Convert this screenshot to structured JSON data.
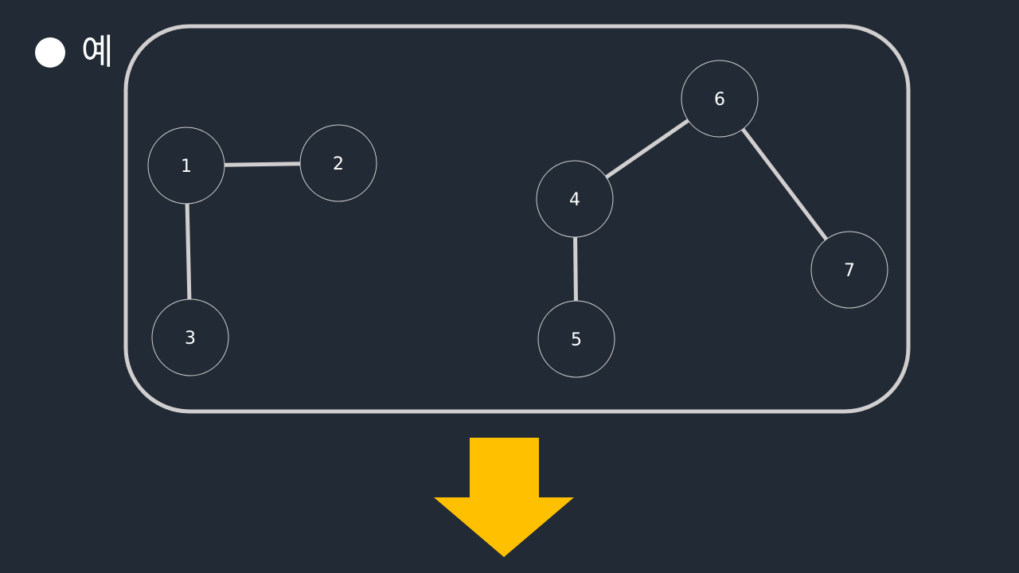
{
  "slide": {
    "bullet_text": "예"
  },
  "graph": {
    "nodes": [
      {
        "id": "1",
        "label": "1"
      },
      {
        "id": "2",
        "label": "2"
      },
      {
        "id": "3",
        "label": "3"
      },
      {
        "id": "4",
        "label": "4"
      },
      {
        "id": "5",
        "label": "5"
      },
      {
        "id": "6",
        "label": "6"
      },
      {
        "id": "7",
        "label": "7"
      }
    ],
    "edges": [
      [
        "1",
        "2"
      ],
      [
        "1",
        "3"
      ],
      [
        "4",
        "6"
      ],
      [
        "4",
        "5"
      ],
      [
        "6",
        "7"
      ]
    ]
  },
  "colors": {
    "background": "#222a35",
    "frame": "#d0cece",
    "edge": "#d0cece",
    "node_stroke": "#d0cece",
    "arrow": "#ffc000"
  }
}
